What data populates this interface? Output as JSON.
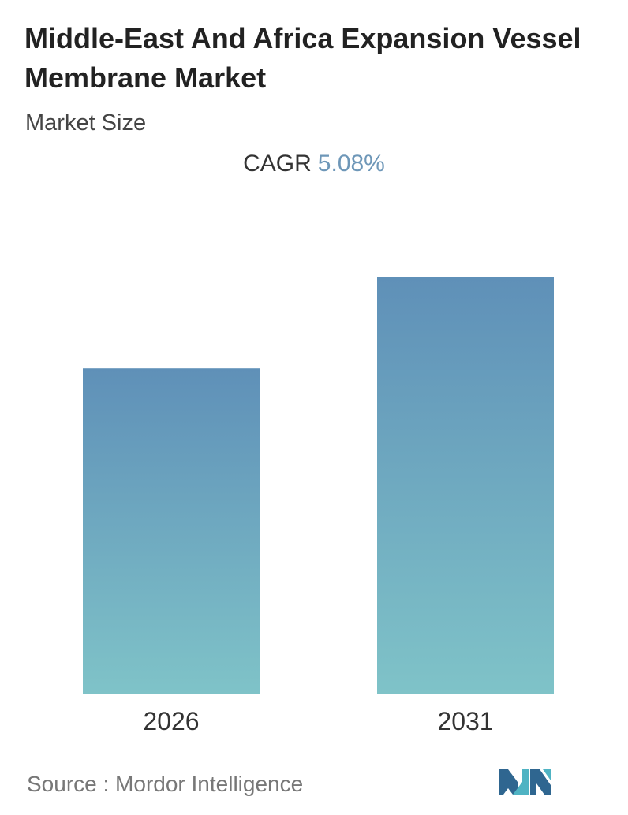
{
  "header": {
    "title": "Middle-East And Africa Expansion Vessel Membrane Market",
    "subtitle": "Market Size",
    "cagr_label": "CAGR",
    "cagr_value": "5.08%"
  },
  "chart_data": {
    "type": "bar",
    "categories": [
      "2026",
      "2031"
    ],
    "values": [
      1.0,
      1.28
    ],
    "title": "Middle-East And Africa Expansion Vessel Membrane Market",
    "subtitle": "Market Size",
    "xlabel": "",
    "ylabel": "",
    "ylim": [
      0,
      1.45
    ],
    "grid": false,
    "legend": "none",
    "colors": {
      "bar_top": "#5f90b8",
      "bar_bottom": "#7fc3c8"
    }
  },
  "footer": {
    "source": "Source :  Mordor Intelligence",
    "logo_icon": "mordor-intelligence-logo-icon",
    "logo_colors": [
      "#2f6690",
      "#4fb3c3"
    ]
  }
}
